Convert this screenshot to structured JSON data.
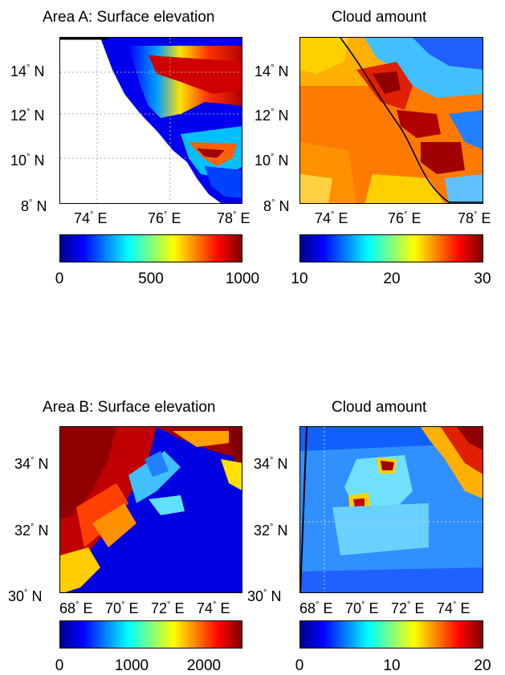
{
  "figure": {
    "area_a": {
      "elevation_title": "Area A: Surface elevation",
      "cloud_title": "Cloud amount",
      "lat_ticks": [
        "14",
        "12",
        "10",
        "8"
      ],
      "lon_ticks": [
        "74",
        "76",
        "78"
      ],
      "lat_suffix": "N",
      "lon_suffix": "E",
      "elevation_colorbar": [
        "0",
        "500",
        "1000"
      ],
      "cloud_colorbar": [
        "10",
        "20",
        "30"
      ]
    },
    "area_b": {
      "elevation_title": "Area B: Surface elevation",
      "cloud_title": "Cloud amount",
      "lat_ticks": [
        "34",
        "32",
        "30"
      ],
      "lon_ticks": [
        "68",
        "70",
        "72",
        "74"
      ],
      "lat_suffix": "N",
      "lon_suffix": "E",
      "elevation_colorbar": [
        "0",
        "1000",
        "2000"
      ],
      "cloud_colorbar": [
        "0",
        "10",
        "20"
      ]
    },
    "colormap": [
      "#00008f",
      "#0000ff",
      "#0080ff",
      "#00ffff",
      "#80ff80",
      "#ffff00",
      "#ff8000",
      "#ff0000",
      "#800000"
    ]
  }
}
